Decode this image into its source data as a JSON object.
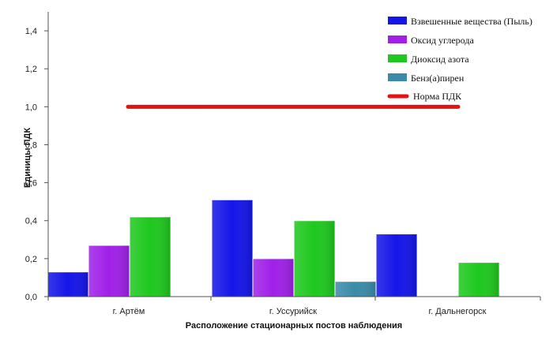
{
  "chart_data": {
    "type": "bar",
    "xlabel": "Расположение стационарных постов наблюдения",
    "ylabel": "Единицы ПДК",
    "ylim": [
      0,
      1.5
    ],
    "yticks": [
      "0,0",
      "0,2",
      "0,4",
      "0,6",
      "0,8",
      "1,0",
      "1,2",
      "1,4"
    ],
    "categories": [
      "г. Артём",
      "г. Уссурийск",
      "г. Дальнегорск"
    ],
    "series": [
      {
        "name": "Взвешенные вещества (Пыль)",
        "color": "#1515e8",
        "values": [
          0.13,
          0.51,
          0.33
        ]
      },
      {
        "name": "Оксид углерода",
        "color": "#a020e8",
        "values": [
          0.27,
          0.2,
          null
        ]
      },
      {
        "name": "Диоксид азота",
        "color": "#1ec81e",
        "values": [
          0.42,
          0.4,
          0.18
        ]
      },
      {
        "name": "Бенз(а)пирен",
        "color": "#3a8aa8",
        "values": [
          null,
          0.08,
          null
        ]
      }
    ],
    "reference_line": {
      "name": "Норма ПДК",
      "value": 1.0,
      "color": "#e81010"
    },
    "grid": false,
    "legend_position": "top-right"
  }
}
